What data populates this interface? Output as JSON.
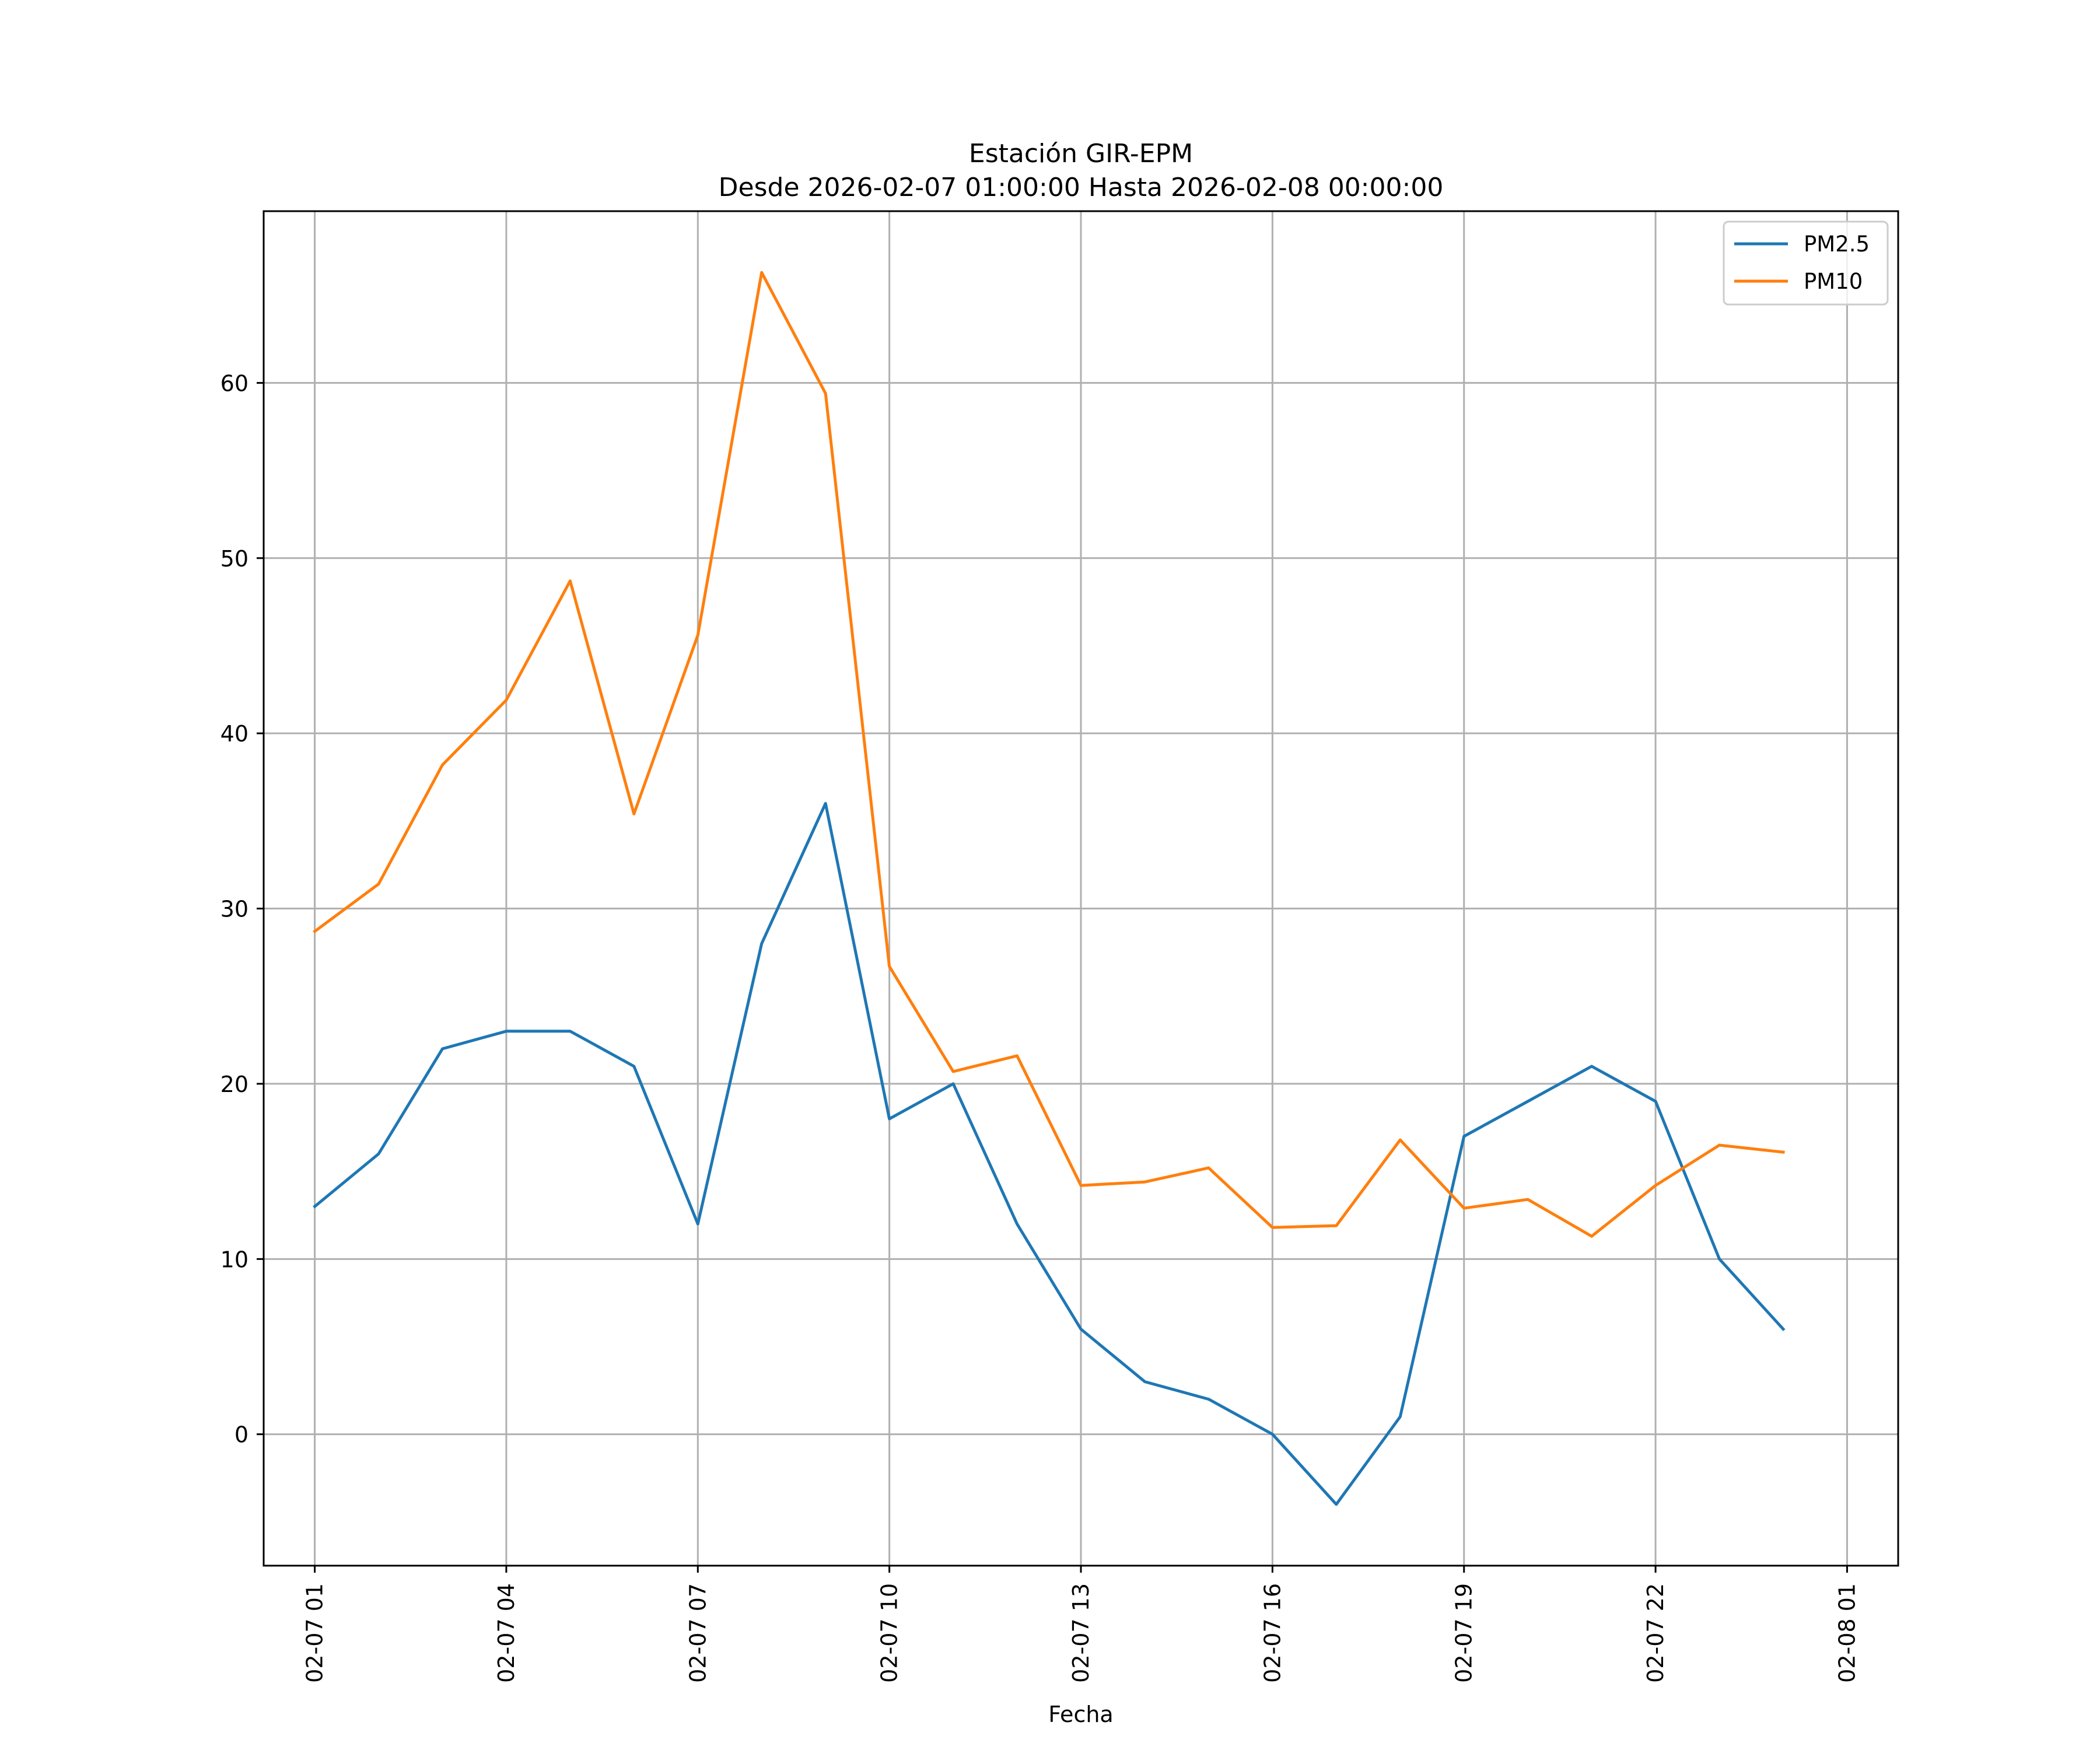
{
  "chart_data": {
    "type": "line",
    "title_line1": "Estación GIR-EPM",
    "title_line2": "Desde 2026-02-07 01:00:00 Hasta 2026-02-08 00:00:00",
    "xlabel": "Fecha",
    "ylabel": "",
    "grid": true,
    "legend_position": "top-right",
    "x_unit": "hour",
    "xlim": [
      -0.8,
      24.8
    ],
    "ylim": [
      -7.5,
      69.8
    ],
    "y_ticks": [
      0,
      10,
      20,
      30,
      40,
      50,
      60
    ],
    "x_ticks": [
      {
        "x": 0,
        "label": "02-07 01"
      },
      {
        "x": 3,
        "label": "02-07 04"
      },
      {
        "x": 6,
        "label": "02-07 07"
      },
      {
        "x": 9,
        "label": "02-07 10"
      },
      {
        "x": 12,
        "label": "02-07 13"
      },
      {
        "x": 15,
        "label": "02-07 16"
      },
      {
        "x": 18,
        "label": "02-07 19"
      },
      {
        "x": 21,
        "label": "02-07 22"
      },
      {
        "x": 24,
        "label": "02-08 01"
      }
    ],
    "x": [
      0,
      1,
      2,
      3,
      4,
      5,
      6,
      7,
      8,
      9,
      10,
      11,
      12,
      13,
      14,
      15,
      16,
      17,
      18,
      19,
      20,
      21,
      22,
      23
    ],
    "series": [
      {
        "name": "PM2.5",
        "color": "#1f77b4",
        "values": [
          13,
          16,
          22,
          23,
          23,
          21,
          12,
          28,
          36,
          18,
          20,
          12,
          6,
          3,
          2,
          0,
          -4,
          1,
          17,
          19,
          21,
          19,
          10,
          6
        ]
      },
      {
        "name": "PM10",
        "color": "#ff7f0e",
        "values": [
          28.7,
          31.4,
          38.2,
          41.9,
          48.7,
          35.4,
          45.6,
          66.3,
          59.4,
          26.7,
          20.7,
          21.6,
          14.2,
          14.4,
          15.2,
          11.8,
          11.9,
          16.8,
          12.9,
          13.4,
          11.3,
          14.2,
          16.5,
          16.1
        ]
      }
    ]
  }
}
